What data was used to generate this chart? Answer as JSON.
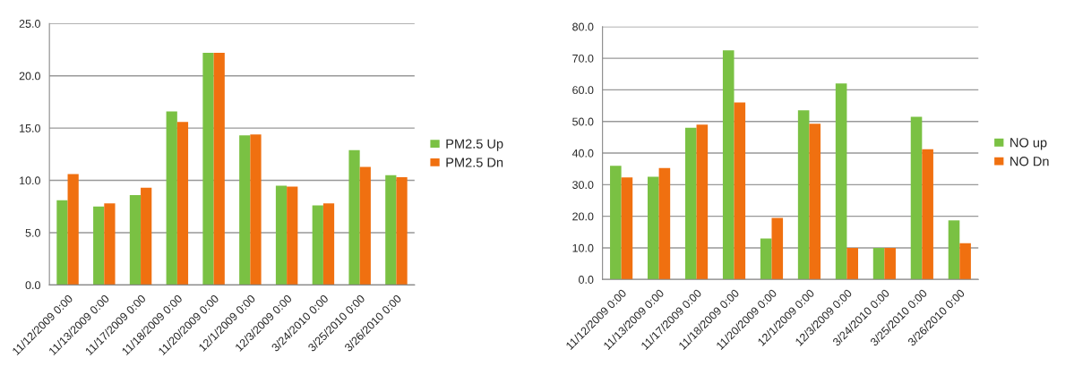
{
  "chart_data": [
    {
      "type": "bar",
      "categories": [
        "11/12/2009 0:00",
        "11/13/2009 0:00",
        "11/17/2009 0:00",
        "11/18/2009 0:00",
        "11/20/2009 0:00",
        "12/1/2009 0:00",
        "12/3/2009 0:00",
        "3/24/2010 0:00",
        "3/25/2010 0:00",
        "3/26/2010 0:00"
      ],
      "series": [
        {
          "name": "PM2.5 Up",
          "color": "#7ac143",
          "values": [
            8.1,
            7.5,
            8.6,
            16.6,
            22.2,
            14.3,
            9.5,
            7.6,
            12.9,
            10.5
          ]
        },
        {
          "name": "PM2.5 Dn",
          "color": "#f07010",
          "values": [
            10.6,
            7.8,
            9.3,
            15.6,
            22.2,
            14.4,
            9.4,
            7.8,
            11.3,
            10.3
          ]
        }
      ],
      "ylim": [
        0,
        25
      ],
      "yticks": [
        {
          "value": 0,
          "label": "0.0"
        },
        {
          "value": 5,
          "label": "5.0"
        },
        {
          "value": 10,
          "label": "10.0"
        },
        {
          "value": 15,
          "label": "15.0"
        },
        {
          "value": 20,
          "label": "20.0"
        },
        {
          "value": 25,
          "label": "25.0"
        }
      ],
      "grid": "y",
      "legend": "right"
    },
    {
      "type": "bar",
      "categories": [
        "11/12/2009 0:00",
        "11/13/2009 0:00",
        "11/17/2009 0:00",
        "11/18/2009 0:00",
        "11/20/2009 0:00",
        "12/1/2009 0:00",
        "12/3/2009 0:00",
        "3/24/2010 0:00",
        "3/25/2010 0:00",
        "3/26/2010 0:00"
      ],
      "series": [
        {
          "name": "NO up",
          "color": "#7ac143",
          "values": [
            36,
            32.5,
            48,
            72.5,
            13,
            53.5,
            62,
            10,
            51.5,
            18.7
          ]
        },
        {
          "name": "NO Dn",
          "color": "#f07010",
          "values": [
            32.3,
            35.3,
            49,
            56,
            19.5,
            49.3,
            10,
            10,
            41.2,
            11.5
          ]
        }
      ],
      "ylim": [
        0,
        80
      ],
      "yticks": [
        {
          "value": 0,
          "label": "0.0"
        },
        {
          "value": 10,
          "label": "10.0"
        },
        {
          "value": 20,
          "label": "20.0"
        },
        {
          "value": 30,
          "label": "30.0"
        },
        {
          "value": 40,
          "label": "40.0"
        },
        {
          "value": 50,
          "label": "50.0"
        },
        {
          "value": 60,
          "label": "60.0"
        },
        {
          "value": 70,
          "label": "70.0"
        },
        {
          "value": 80,
          "label": "80.0"
        }
      ],
      "grid": "y",
      "legend": "right"
    }
  ]
}
